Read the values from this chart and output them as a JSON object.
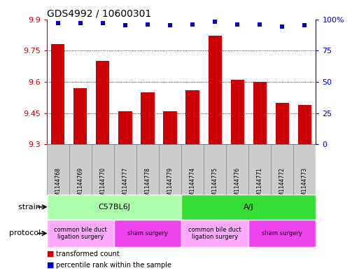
{
  "title": "GDS4992 / 10600301",
  "samples": [
    "GSM1144768",
    "GSM1144769",
    "GSM1144770",
    "GSM1144777",
    "GSM1144778",
    "GSM1144779",
    "GSM1144774",
    "GSM1144775",
    "GSM1144776",
    "GSM1144771",
    "GSM1144772",
    "GSM1144773"
  ],
  "bar_values": [
    9.78,
    9.57,
    9.7,
    9.46,
    9.55,
    9.46,
    9.56,
    9.82,
    9.61,
    9.6,
    9.5,
    9.49
  ],
  "dot_values": [
    97,
    97,
    97,
    95,
    96,
    95,
    96,
    98,
    96,
    96,
    94,
    95
  ],
  "ylim_left": [
    9.3,
    9.9
  ],
  "ylim_right": [
    0,
    100
  ],
  "yticks_left": [
    9.3,
    9.45,
    9.6,
    9.75,
    9.9
  ],
  "yticks_left_labels": [
    "9.3",
    "9.45",
    "9.6",
    "9.75",
    "9.9"
  ],
  "yticks_right": [
    0,
    25,
    50,
    75,
    100
  ],
  "yticks_right_labels": [
    "0",
    "25",
    "50",
    "75",
    "100%"
  ],
  "bar_color": "#cc0000",
  "dot_color": "#0000cc",
  "grid_yticks": [
    9.45,
    9.6,
    9.75
  ],
  "strain_groups": [
    {
      "label": "C57BL6J",
      "start": 0,
      "end": 6,
      "color": "#aaffaa"
    },
    {
      "label": "A/J",
      "start": 6,
      "end": 12,
      "color": "#33dd33"
    }
  ],
  "protocol_groups": [
    {
      "label": "common bile duct\nligation surgery",
      "start": 0,
      "end": 3,
      "color": "#ffaaff"
    },
    {
      "label": "sham surgery",
      "start": 3,
      "end": 6,
      "color": "#ee44ee"
    },
    {
      "label": "common bile duct\nligation surgery",
      "start": 6,
      "end": 9,
      "color": "#ffaaff"
    },
    {
      "label": "sham surgery",
      "start": 9,
      "end": 12,
      "color": "#ee44ee"
    }
  ],
  "sample_bg_color": "#cccccc",
  "sample_border_color": "#888888",
  "legend_bar_label": "transformed count",
  "legend_dot_label": "percentile rank within the sample",
  "strain_label": "strain",
  "protocol_label": "protocol",
  "fig_width": 5.13,
  "fig_height": 3.93,
  "dpi": 100
}
